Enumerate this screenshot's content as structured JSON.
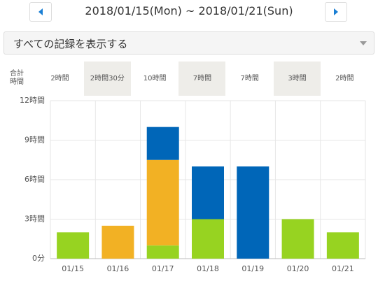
{
  "header": {
    "range": "2018/01/15(Mon) ~ 2018/01/21(Sun)"
  },
  "filter": {
    "label": "すべての記録を表示する"
  },
  "totals": {
    "label": "合計時間",
    "values": [
      "2時間",
      "2時間30分",
      "10時間",
      "7時間",
      "7時間",
      "3時間",
      "2時間"
    ]
  },
  "chart_data": {
    "type": "stacked_bar",
    "categories": [
      "01/15",
      "01/16",
      "01/17",
      "01/18",
      "01/19",
      "01/20",
      "01/21"
    ],
    "series": [
      {
        "color": "#97d321",
        "values": [
          2,
          null,
          1,
          3,
          null,
          3,
          2
        ]
      },
      {
        "color": "#f2b124",
        "values": [
          null,
          2.5,
          6.5,
          null,
          null,
          null,
          null
        ]
      },
      {
        "color": "#0066b8",
        "values": [
          null,
          null,
          2.5,
          4,
          7,
          null,
          null
        ]
      }
    ],
    "ylim": [
      0,
      12
    ],
    "yticks": [
      {
        "value": 0,
        "label": "0分"
      },
      {
        "value": 3,
        "label": "3時間"
      },
      {
        "value": 6,
        "label": "6時間"
      },
      {
        "value": 9,
        "label": "9時間"
      },
      {
        "value": 12,
        "label": "12時間"
      }
    ],
    "grid": true
  }
}
